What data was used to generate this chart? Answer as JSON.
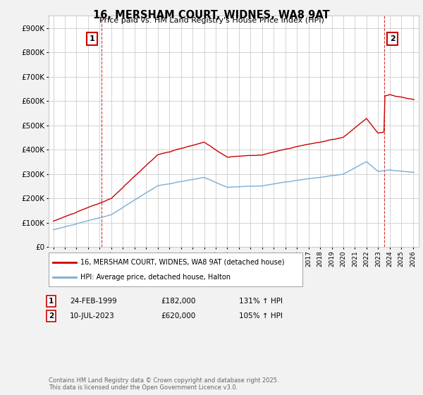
{
  "title": "16, MERSHAM COURT, WIDNES, WA8 9AT",
  "subtitle": "Price paid vs. HM Land Registry's House Price Index (HPI)",
  "ylim": [
    0,
    950000
  ],
  "yticks": [
    0,
    100000,
    200000,
    300000,
    400000,
    500000,
    600000,
    700000,
    800000,
    900000
  ],
  "ytick_labels": [
    "£0",
    "£100K",
    "£200K",
    "£300K",
    "£400K",
    "£500K",
    "£600K",
    "£700K",
    "£800K",
    "£900K"
  ],
  "xlim_start": 1994.6,
  "xlim_end": 2026.5,
  "sale1_year": 1999.13,
  "sale1_price": 182000,
  "sale1_label": "1",
  "sale1_date": "24-FEB-1999",
  "sale1_amount": "£182,000",
  "sale1_hpi": "131% ↑ HPI",
  "sale2_year": 2023.53,
  "sale2_price": 620000,
  "sale2_label": "2",
  "sale2_date": "10-JUL-2023",
  "sale2_amount": "£620,000",
  "sale2_hpi": "105% ↑ HPI",
  "red_line_color": "#cc0000",
  "blue_line_color": "#7aaed4",
  "grid_color": "#cccccc",
  "bg_color": "#f2f2f2",
  "plot_bg_color": "#ffffff",
  "legend1_label": "16, MERSHAM COURT, WIDNES, WA8 9AT (detached house)",
  "legend2_label": "HPI: Average price, detached house, Halton",
  "footer": "Contains HM Land Registry data © Crown copyright and database right 2025.\nThis data is licensed under the Open Government Licence v3.0."
}
